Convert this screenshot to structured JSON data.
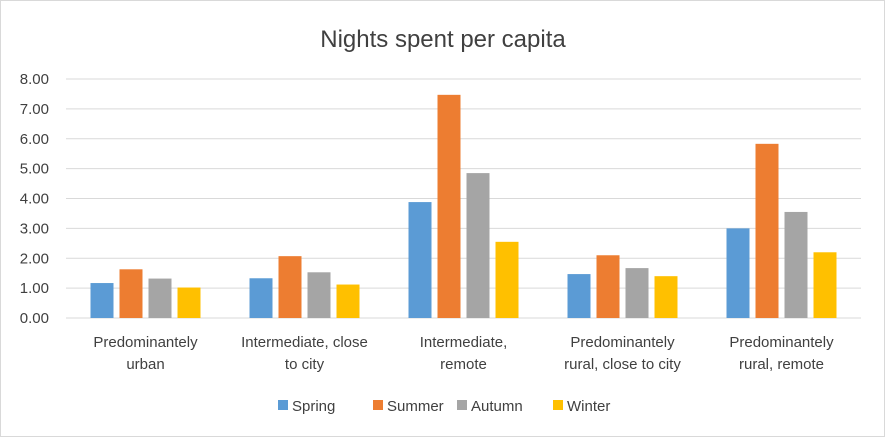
{
  "chart_data": {
    "type": "bar",
    "title": "Nights spent per capita",
    "categories": [
      [
        "Predominantely",
        "urban"
      ],
      [
        "Intermediate, close",
        "to city"
      ],
      [
        "Intermediate,",
        "remote"
      ],
      [
        "Predominantely",
        "rural, close to city"
      ],
      [
        "Predominantely",
        "rural, remote"
      ]
    ],
    "series": [
      {
        "name": "Spring",
        "color": "#5b9bd5",
        "values": [
          1.17,
          1.33,
          3.88,
          1.47,
          3.0
        ]
      },
      {
        "name": "Summer",
        "color": "#ed7d31",
        "values": [
          1.63,
          2.07,
          7.47,
          2.1,
          5.83
        ]
      },
      {
        "name": "Autumn",
        "color": "#a5a5a5",
        "values": [
          1.32,
          1.53,
          4.85,
          1.67,
          3.55
        ]
      },
      {
        "name": "Winter",
        "color": "#ffc000",
        "values": [
          1.02,
          1.12,
          2.55,
          1.4,
          2.2
        ]
      }
    ],
    "ylim": [
      0,
      8
    ],
    "yticks": [
      "0.00",
      "1.00",
      "2.00",
      "3.00",
      "4.00",
      "5.00",
      "6.00",
      "7.00",
      "8.00"
    ],
    "grid": true,
    "legend": "bottom"
  }
}
